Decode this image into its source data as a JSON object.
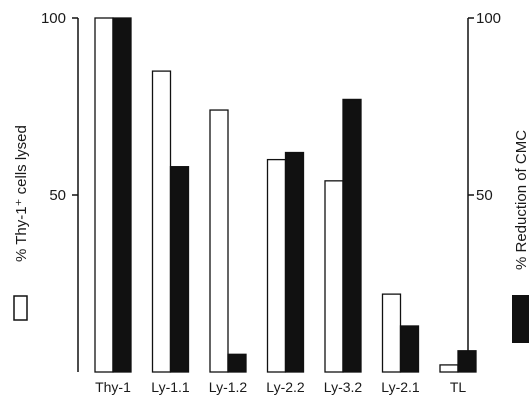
{
  "chart_data": {
    "type": "bar",
    "categories": [
      "Thy-1",
      "Ly-1.1",
      "Ly-1.2",
      "Ly-2.2",
      "Ly-3.2",
      "Ly-2.1",
      "TL"
    ],
    "series": [
      {
        "name": "% Thy-1⁺ cells lysed",
        "values": [
          100,
          85,
          74,
          60,
          54,
          22,
          2
        ],
        "color": "#ffffff"
      },
      {
        "name": "% Reduction of CMC",
        "values": [
          100,
          58,
          5,
          62,
          77,
          13,
          6
        ],
        "color": "#111111"
      }
    ],
    "ylabel_left": "% Thy-1⁺ cells lysed",
    "ylabel_right": "% Reduction of CMC",
    "yticks_left": [
      "100",
      "50"
    ],
    "yticks_right": [
      "100",
      "50"
    ],
    "ylim": [
      0,
      100
    ],
    "grid": false,
    "legend": "side swatches next to axis labels"
  }
}
